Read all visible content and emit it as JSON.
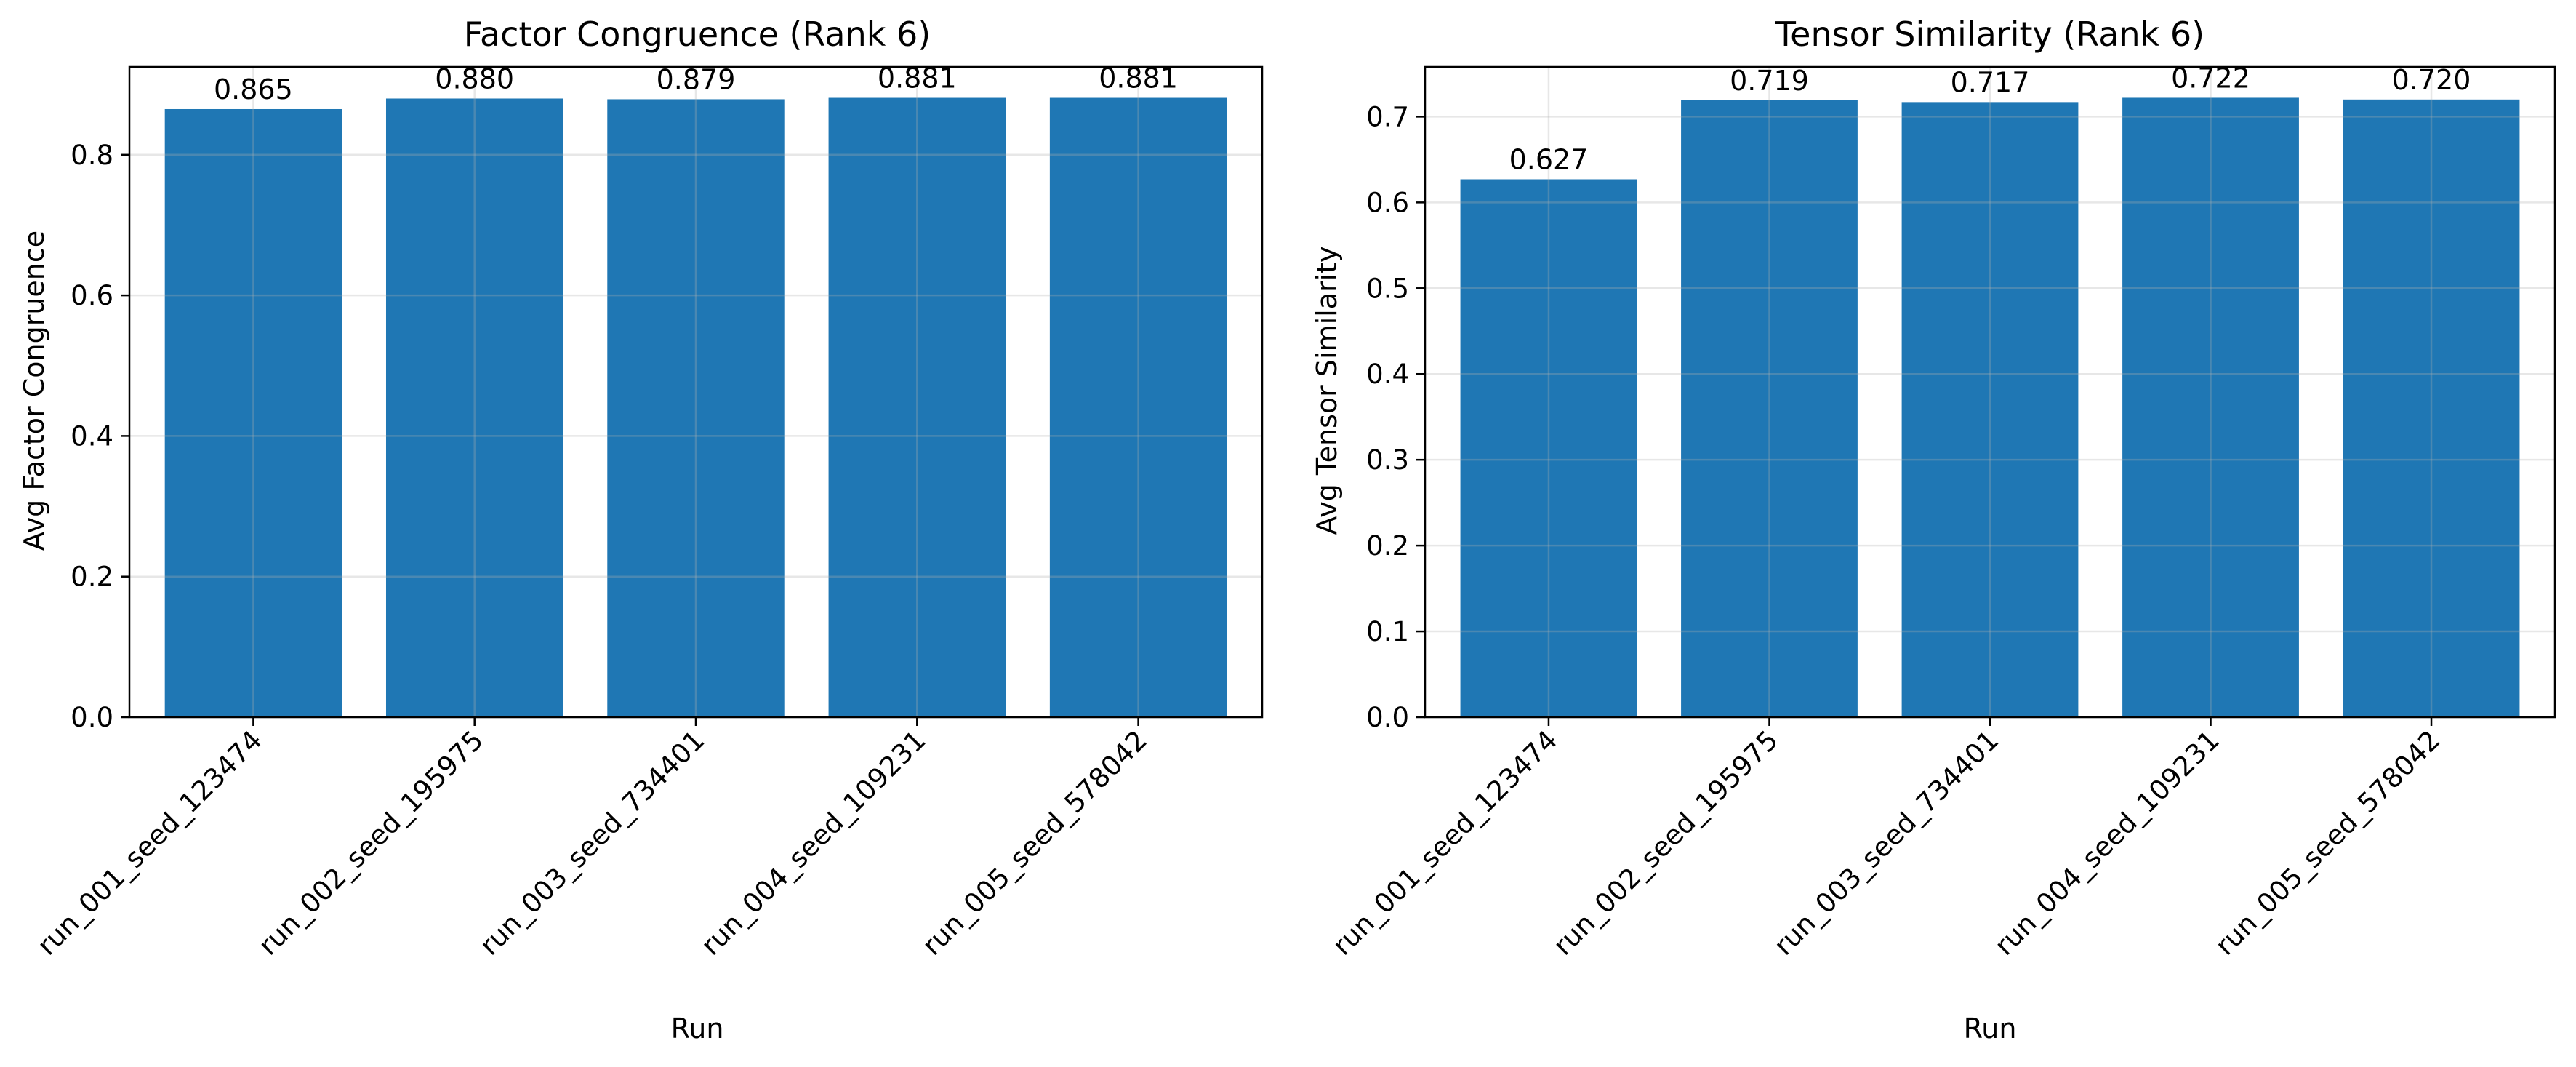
{
  "colors": {
    "bar": "#1f77b4",
    "grid": "#dcdcdc",
    "axis": "#000000"
  },
  "chart_data": [
    {
      "type": "bar",
      "title": "Factor Congruence (Rank 6)",
      "xlabel": "Run",
      "ylabel": "Avg Factor Congruence",
      "categories": [
        "run_001_seed_123474",
        "run_002_seed_195975",
        "run_003_seed_734401",
        "run_004_seed_109231",
        "run_005_seed_578042"
      ],
      "values": [
        0.865,
        0.88,
        0.879,
        0.881,
        0.881
      ],
      "value_labels": [
        "0.865",
        "0.880",
        "0.879",
        "0.881",
        "0.881"
      ],
      "ylim": [
        0,
        0.925
      ],
      "yticks": [
        0.0,
        0.2,
        0.4,
        0.6,
        0.8
      ],
      "ytick_labels": [
        "0.0",
        "0.2",
        "0.4",
        "0.6",
        "0.8"
      ],
      "grid": true
    },
    {
      "type": "bar",
      "title": "Tensor Similarity (Rank 6)",
      "xlabel": "Run",
      "ylabel": "Avg Tensor Similarity",
      "categories": [
        "run_001_seed_123474",
        "run_002_seed_195975",
        "run_003_seed_734401",
        "run_004_seed_109231",
        "run_005_seed_578042"
      ],
      "values": [
        0.627,
        0.719,
        0.717,
        0.722,
        0.72
      ],
      "value_labels": [
        "0.627",
        "0.719",
        "0.717",
        "0.722",
        "0.720"
      ],
      "ylim": [
        0,
        0.758
      ],
      "yticks": [
        0.0,
        0.1,
        0.2,
        0.3,
        0.4,
        0.5,
        0.6,
        0.7
      ],
      "ytick_labels": [
        "0.0",
        "0.1",
        "0.2",
        "0.3",
        "0.4",
        "0.5",
        "0.6",
        "0.7"
      ],
      "grid": true
    }
  ]
}
